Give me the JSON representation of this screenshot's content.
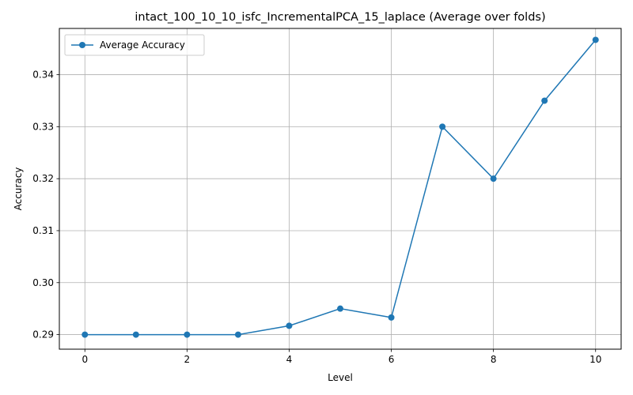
{
  "chart_data": {
    "type": "line",
    "title": "intact_100_10_10_isfc_IncrementalPCA_15_laplace (Average over folds)",
    "xlabel": "Level",
    "ylabel": "Accuracy",
    "xlim": [
      -0.5,
      10.5
    ],
    "ylim": [
      0.2872,
      0.3489
    ],
    "x_ticks": [
      0,
      2,
      4,
      6,
      8,
      10
    ],
    "y_ticks": [
      0.29,
      0.3,
      0.31,
      0.32,
      0.33,
      0.34
    ],
    "x_tick_labels": [
      "0",
      "2",
      "4",
      "6",
      "8",
      "10"
    ],
    "y_tick_labels": [
      "0.29",
      "0.30",
      "0.31",
      "0.32",
      "0.33",
      "0.34"
    ],
    "grid": true,
    "legend_position": "upper-left",
    "series": [
      {
        "name": "Average Accuracy",
        "color": "#1f77b4",
        "marker": "circle",
        "x": [
          0,
          1,
          2,
          3,
          4,
          5,
          6,
          7,
          8,
          9,
          10
        ],
        "y": [
          0.29,
          0.29,
          0.29,
          0.29,
          0.2917,
          0.295,
          0.2933,
          0.33,
          0.32,
          0.335,
          0.3467
        ]
      }
    ]
  }
}
